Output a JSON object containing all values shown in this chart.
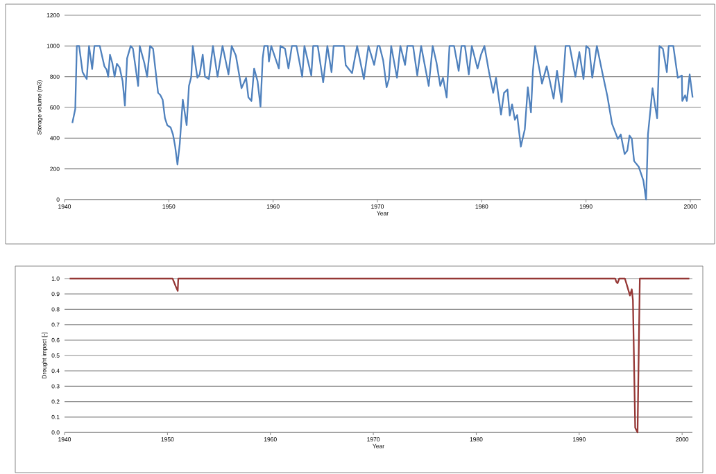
{
  "chart_data": [
    {
      "type": "line",
      "xlabel": "Year",
      "ylabel": "Storage volume (m3)",
      "xlim": [
        1940,
        2001
      ],
      "xticks": [
        1940,
        1950,
        1960,
        1970,
        1980,
        1990,
        2000
      ],
      "ylim": [
        0,
        1200
      ],
      "yticks": [
        0,
        200,
        400,
        600,
        800,
        1000,
        1200
      ],
      "grid": "y",
      "x": [
        1940.75,
        1941.03,
        1941.18,
        1941.4,
        1941.73,
        1941.91,
        1942.13,
        1942.35,
        1942.54,
        1942.65,
        1942.87,
        1943.38,
        1943.82,
        1944.04,
        1944.19,
        1944.36,
        1944.58,
        1944.8,
        1945.02,
        1945.28,
        1945.57,
        1945.79,
        1946.0,
        1946.34,
        1946.56,
        1947.06,
        1947.21,
        1947.65,
        1947.92,
        1948.2,
        1948.49,
        1948.97,
        1949.19,
        1949.41,
        1949.63,
        1949.85,
        1950.18,
        1950.4,
        1950.6,
        1950.83,
        1951.05,
        1951.34,
        1951.71,
        1951.93,
        1952.15,
        1952.3,
        1952.74,
        1952.96,
        1953.25,
        1953.47,
        1953.84,
        1954.23,
        1954.67,
        1955.15,
        1955.72,
        1956.03,
        1956.43,
        1956.97,
        1957.41,
        1957.63,
        1957.92,
        1958.18,
        1958.51,
        1958.79,
        1959.0,
        1959.15,
        1959.49,
        1959.6,
        1959.82,
        1960.55,
        1960.7,
        1961.14,
        1961.47,
        1961.8,
        1962.24,
        1962.79,
        1963.0,
        1963.66,
        1963.84,
        1964.28,
        1964.8,
        1965.2,
        1965.6,
        1965.8,
        1966.8,
        1966.96,
        1967.57,
        1968.05,
        1968.7,
        1969.14,
        1969.69,
        1970.02,
        1970.2,
        1970.55,
        1970.88,
        1971.1,
        1971.32,
        1971.88,
        1972.2,
        1972.65,
        1972.87,
        1973.42,
        1973.82,
        1974.19,
        1974.92,
        1975.3,
        1975.67,
        1976.03,
        1976.29,
        1976.64,
        1976.91,
        1977.35,
        1977.79,
        1978.06,
        1978.39,
        1978.76,
        1979.05,
        1979.6,
        1979.93,
        1980.26,
        1980.7,
        1981.1,
        1981.37,
        1981.85,
        1982.14,
        1982.47,
        1982.69,
        1982.91,
        1983.18,
        1983.4,
        1983.75,
        1984.13,
        1984.42,
        1984.72,
        1984.9,
        1985.12,
        1985.78,
        1986.23,
        1986.89,
        1987.22,
        1987.66,
        1988.04,
        1988.43,
        1988.98,
        1989.36,
        1989.76,
        1990.02,
        1990.31,
        1990.6,
        1991.04,
        1991.6,
        1992.05,
        1992.5,
        1993.05,
        1993.33,
        1993.7,
        1993.96,
        1994.17,
        1994.39,
        1994.61,
        1995.06,
        1995.5,
        1995.76,
        1995.94,
        1996.38,
        1996.6,
        1996.82,
        1997.04,
        1997.37,
        1997.75,
        1997.93,
        1998.37,
        1998.8,
        1999.19,
        1999.23,
        1999.5,
        1999.67,
        1999.94,
        2000.22
      ],
      "series": [
        {
          "color": "#4f81bd",
          "values": [
            499,
            590,
            1000,
            1000,
            830,
            808,
            785,
            1000,
            907,
            850,
            1000,
            1000,
            868,
            845,
            800,
            943,
            890,
            800,
            884,
            860,
            770,
            612,
            920,
            1000,
            982,
            740,
            1000,
            890,
            800,
            1000,
            982,
            695,
            680,
            650,
            530,
            484,
            469,
            424,
            349,
            229,
            364,
            650,
            484,
            740,
            800,
            1000,
            793,
            815,
            943,
            800,
            785,
            1000,
            800,
            1000,
            815,
            1000,
            937,
            725,
            793,
            665,
            642,
            853,
            770,
            605,
            920,
            1000,
            1000,
            898,
            1000,
            853,
            1000,
            982,
            853,
            1000,
            1000,
            800,
            1000,
            808,
            1000,
            1000,
            763,
            1000,
            830,
            1000,
            1000,
            875,
            823,
            1000,
            785,
            1000,
            877,
            1000,
            1000,
            907,
            731,
            784,
            1000,
            793,
            1000,
            877,
            1000,
            1000,
            808,
            1000,
            740,
            1000,
            890,
            740,
            793,
            665,
            1000,
            1000,
            838,
            1000,
            1000,
            815,
            1000,
            853,
            943,
            1000,
            830,
            695,
            793,
            553,
            695,
            717,
            548,
            620,
            520,
            550,
            345,
            457,
            731,
            568,
            830,
            1000,
            755,
            868,
            657,
            838,
            635,
            1000,
            1000,
            800,
            960,
            785,
            1000,
            982,
            793,
            1000,
            815,
            672,
            492,
            395,
            424,
            296,
            319,
            417,
            395,
            251,
            213,
            124,
            0,
            424,
            725,
            620,
            529,
            1000,
            982,
            830,
            1000,
            1000,
            793,
            808,
            642,
            679,
            642,
            815,
            665
          ]
        }
      ]
    },
    {
      "type": "line",
      "xlabel": "Year",
      "ylabel": "Drought impact [-]",
      "xlim": [
        1940,
        2001
      ],
      "xticks": [
        1940,
        1950,
        1960,
        1970,
        1980,
        1990,
        2000
      ],
      "ylim": [
        0,
        1
      ],
      "yticks": [
        {
          "value": 0,
          "label": "0.0"
        },
        0.1,
        0.2,
        0.3,
        0.4,
        0.5,
        0.6,
        0.7,
        0.8,
        0.9,
        {
          "value": 1,
          "label": "1.0"
        }
      ],
      "grid": "y",
      "x": [
        1940.5,
        1950.5,
        1950.8,
        1951.0,
        1951.05,
        1993.5,
        1993.6,
        1993.73,
        1993.89,
        1994.44,
        1994.67,
        1994.93,
        1995.11,
        1995.22,
        1995.44,
        1995.67,
        1995.89,
        2000.7
      ],
      "series": [
        {
          "color": "#953735",
          "values": [
            1,
            1,
            0.95,
            0.92,
            1,
            1,
            0.98,
            0.97,
            1,
            1,
            0.95,
            0.89,
            0.93,
            0.86,
            0.03,
            0,
            1,
            1
          ]
        }
      ]
    }
  ]
}
